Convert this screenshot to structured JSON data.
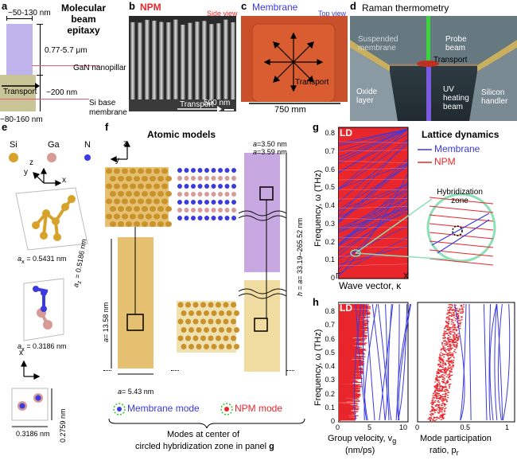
{
  "panels": {
    "a": {
      "letter": "a",
      "title": "Molecular beam epitaxy",
      "top_width": "~50-130 nm",
      "pillar_height": "0.77-5.7 μm",
      "nanopillar_label": "GaN nanopillar",
      "base_thickness": "~200 nm",
      "base_label": "Si base membrane",
      "base_width": "~80-160 nm",
      "transport": "Transport"
    },
    "b": {
      "letter": "b",
      "title": "NPM",
      "view": "Side view",
      "transport": "Transport",
      "scale": "500 nm"
    },
    "c": {
      "letter": "c",
      "title": "Membrane",
      "view": "Top view",
      "transport": "Transport",
      "scale": "750 mm"
    },
    "d": {
      "letter": "d",
      "title": "Raman thermometry",
      "suspended": "Suspended membrane",
      "probe": "Probe beam",
      "transport": "Transport",
      "oxide": "Oxide layer",
      "uv": "UV heating beam",
      "silicon": "Silicon handler"
    },
    "e": {
      "letter": "e",
      "si": "Si",
      "ga": "Ga",
      "n": "N",
      "ax": "a",
      "ax_sub": "x",
      "ax_val": " = 0.5431 nm",
      "az": "a",
      "az_sub": "z",
      "az_val": " = 0.5186 nm",
      "ax2": "a",
      "ax2_sub": "x",
      "ax2_val": " = 0.3186 nm",
      "dim1": "0.2759 nm",
      "dim2": "0.3186 nm",
      "axis_x": "x",
      "axis_y": "y",
      "axis_z": "z"
    },
    "f": {
      "letter": "f",
      "title": "Atomic models",
      "axis_z": "z",
      "axis_y": "y",
      "axpx": "a",
      "axpx_rest": "3.50 nm",
      "aypy": "a",
      "aypy_rest": "3.59 nm",
      "height": "h = a",
      "height_rest": "= 33.19–265.52 nm",
      "aza": "a",
      "aza_rest": "= 13.58 nm",
      "ayay": "a",
      "ayay_rest": "= 5.43 nm",
      "membrane_mode": "Membrane mode",
      "npm_mode": "NPM mode",
      "caption_line1": "Modes at center of",
      "caption_line2": "circled hybridization zone in panel",
      "caption_ref": "g"
    },
    "g": {
      "letter": "g",
      "title": "Lattice dynamics",
      "ld": "LD",
      "legend": [
        "Membrane",
        "NPM"
      ],
      "zone": "Hybridization zone",
      "ylabel": "Frequency, ω (THz)",
      "xlabel": "Wave vector, κ",
      "x_start": "Γ",
      "x_end": "X",
      "yticks": [
        "0",
        "0.1",
        "0.2",
        "0.3",
        "0.4",
        "0.5",
        "0.6",
        "0.7",
        "0.8"
      ]
    },
    "h": {
      "letter": "h",
      "ld": "LD",
      "ylabel": "Frequency, ω (THz)",
      "yticks": [
        "0",
        "0.1",
        "0.2",
        "0.3",
        "0.4",
        "0.5",
        "0.6",
        "0.7",
        "0.8"
      ],
      "left_xticks": [
        "0",
        "5",
        "10"
      ],
      "left_xlabel_1": "Group velocity, v",
      "left_xlabel_sub": "g",
      "left_xlabel_2": "(nm/ps)",
      "right_xticks": [
        "0",
        "0.5",
        "1"
      ],
      "right_xlabel_1": "Mode participation",
      "right_xlabel_2": "ratio, p",
      "right_xlabel_sub": "r"
    }
  },
  "colors": {
    "membrane": "#3a3ae0",
    "npm": "#e8262b",
    "si": "#d6a22a",
    "ga": "#d89a96",
    "n": "#3a3ae0",
    "zone": "#8be0b6"
  }
}
